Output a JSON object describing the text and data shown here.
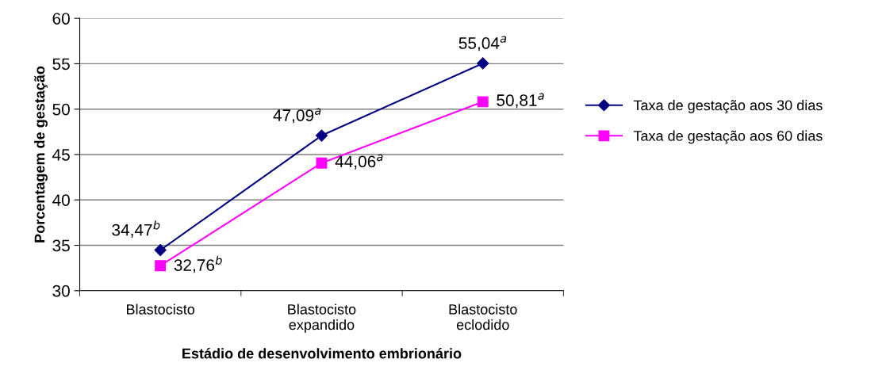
{
  "chart_data": {
    "type": "line",
    "xlabel": "Estádio de desenvolvimento embrionário",
    "ylabel": "Porcentagem de gestação",
    "categories": [
      "Blastocisto",
      "Blastocisto\nexpandido",
      "Blastocisto\neclodido"
    ],
    "series": [
      {
        "name": "Taxa de gestação aos 30 dias",
        "color": "#000080",
        "marker": "diamond",
        "values": [
          34.47,
          47.09,
          55.04
        ],
        "value_labels": [
          "34,47$^{b}$",
          "47,09$^{a}$",
          "55,04$^{a}$"
        ]
      },
      {
        "name": "Taxa de gestação aos 60 dias",
        "color": "#ff00ff",
        "marker": "square",
        "values": [
          32.76,
          44.06,
          50.81
        ],
        "value_labels": [
          "32,76$^{b}$",
          "44,06$^{a}$",
          "50,81$^{a}$"
        ]
      }
    ],
    "ylim": [
      30,
      60
    ],
    "yticks": [
      30,
      35,
      40,
      45,
      50,
      55,
      60
    ],
    "grid": "y",
    "legend": "right",
    "line_style": "solid"
  }
}
